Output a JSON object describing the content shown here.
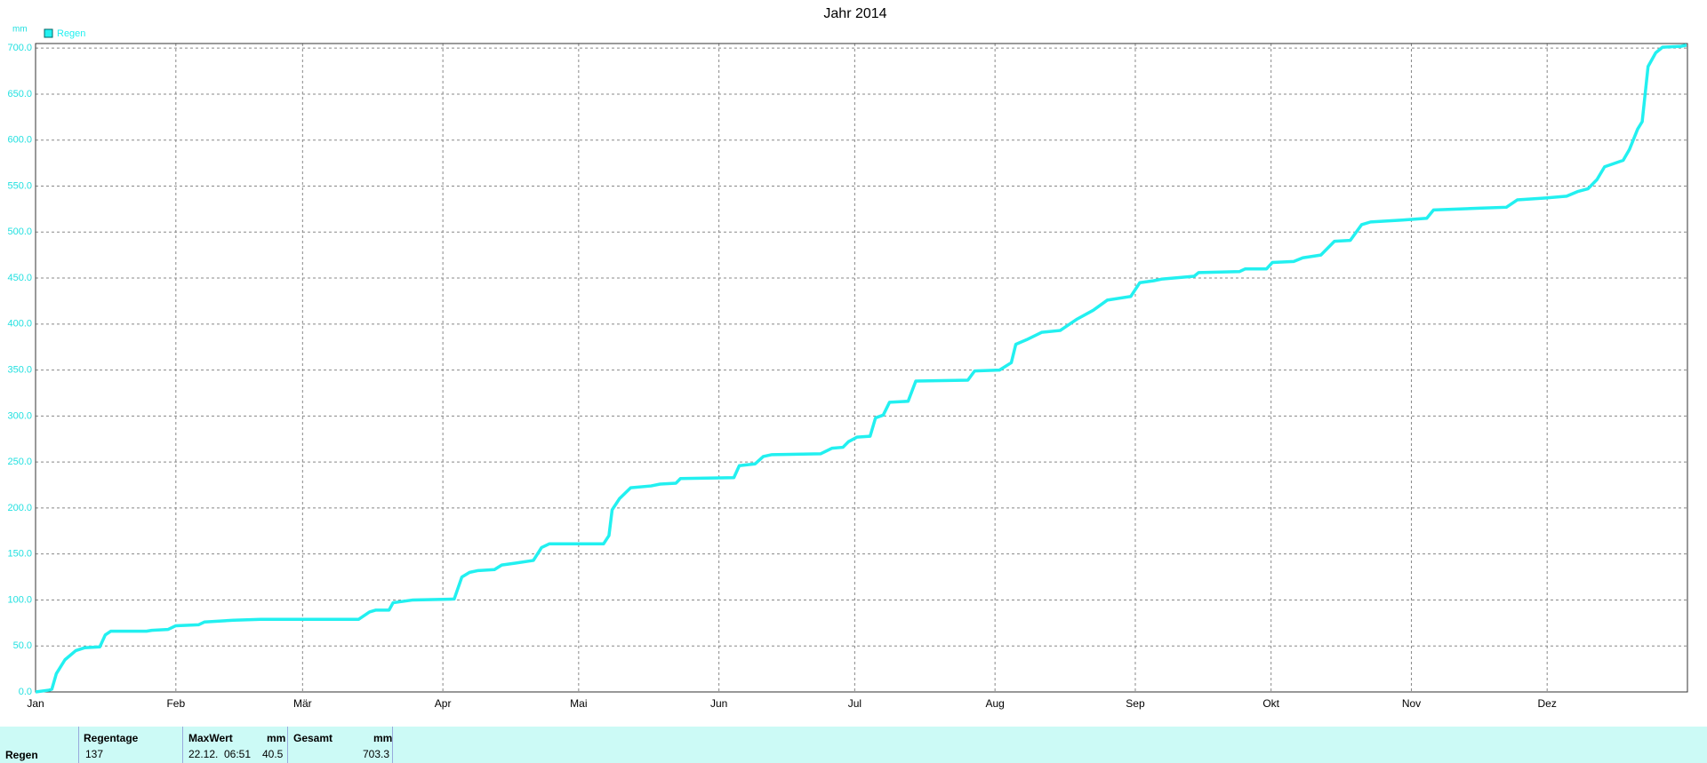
{
  "chart_data": {
    "type": "line",
    "title": "Jahr 2014",
    "y_unit": "mm",
    "x": [
      0,
      3,
      3.6,
      4.6,
      6.5,
      8.9,
      10.8,
      14.2,
      15.4,
      16.6,
      24.5,
      25.7,
      29.3,
      31,
      36,
      37.3,
      43.8,
      49.8,
      71.4,
      73.8,
      75.2,
      78.1,
      79,
      83.4,
      92.5,
      94.2,
      95.9,
      97.8,
      101.4,
      103,
      106,
      110,
      111.8,
      113.5,
      125.5,
      126.7,
      127.4,
      129,
      131.5,
      136,
      138,
      141.5,
      142.5,
      154.3,
      155.5,
      159,
      160.8,
      162.7,
      173.5,
      176,
      178.4,
      179.6,
      181.5,
      184.4,
      185.6,
      187.3,
      188.7,
      192.8,
      194.5,
      206,
      207.5,
      213,
      215.6,
      216.6,
      219,
      222.3,
      226.4,
      230,
      233.7,
      236.8,
      242,
      244,
      247,
      249,
      256,
      257,
      266,
      267.3,
      272,
      273.3,
      278,
      280,
      284,
      287,
      290.5,
      293,
      295,
      302,
      307.4,
      308.9,
      319,
      325,
      327.4,
      333.4,
      338.3,
      340.7,
      343,
      345,
      346.7,
      350.8,
      352.2,
      354,
      355,
      356.3,
      358,
      359.5,
      363.6,
      364.8
    ],
    "series": [
      {
        "name": "Regen",
        "color": "#22f0f0",
        "values": [
          0,
          2,
          3,
          20,
          35,
          45,
          48,
          49,
          62,
          66,
          66,
          67,
          68,
          72,
          73,
          76,
          78,
          79,
          79,
          87,
          89,
          89,
          97,
          100,
          101,
          125,
          130,
          132,
          133,
          138,
          140,
          143,
          157,
          161,
          161,
          170,
          198,
          210,
          222,
          224,
          226,
          227,
          232,
          233,
          246,
          248,
          256,
          258,
          259,
          265,
          266,
          272,
          277,
          278,
          298,
          301,
          315,
          316,
          338,
          339,
          349,
          350,
          358,
          378,
          383,
          391,
          393,
          405,
          415,
          426,
          430,
          445,
          447,
          449,
          452,
          456,
          457,
          460,
          460,
          467,
          468,
          472,
          475,
          490,
          491,
          508,
          511,
          513,
          515,
          524,
          526,
          527,
          535,
          537,
          539,
          544,
          547,
          557,
          571,
          578,
          590,
          612,
          620,
          680,
          695,
          701,
          702,
          703.3
        ]
      }
    ],
    "xlim": [
      0,
      365
    ],
    "xticks": [
      {
        "value": 0,
        "label": "Jan"
      },
      {
        "value": 31,
        "label": "Feb"
      },
      {
        "value": 59,
        "label": "Mär"
      },
      {
        "value": 90,
        "label": "Apr"
      },
      {
        "value": 120,
        "label": "Mai"
      },
      {
        "value": 151,
        "label": "Jun"
      },
      {
        "value": 181,
        "label": "Jul"
      },
      {
        "value": 212,
        "label": "Aug"
      },
      {
        "value": 243,
        "label": "Sep"
      },
      {
        "value": 273,
        "label": "Okt"
      },
      {
        "value": 304,
        "label": "Nov"
      },
      {
        "value": 334,
        "label": "Dez"
      }
    ],
    "ylim": [
      0,
      705
    ],
    "yticks": [
      {
        "value": 0,
        "label": "0.0"
      },
      {
        "value": 50,
        "label": "50.0"
      },
      {
        "value": 100,
        "label": "100.0"
      },
      {
        "value": 150,
        "label": "150.0"
      },
      {
        "value": 200,
        "label": "200.0"
      },
      {
        "value": 250,
        "label": "250.0"
      },
      {
        "value": 300,
        "label": "300.0"
      },
      {
        "value": 350,
        "label": "350.0"
      },
      {
        "value": 400,
        "label": "400.0"
      },
      {
        "value": 450,
        "label": "450.0"
      },
      {
        "value": 500,
        "label": "500.0"
      },
      {
        "value": 550,
        "label": "550.0"
      },
      {
        "value": 600,
        "label": "600.0"
      },
      {
        "value": 650,
        "label": "650.0"
      },
      {
        "value": 700,
        "label": "700.0"
      }
    ],
    "grid": true,
    "legend": "top-left"
  },
  "footer": {
    "row_label": "Regen",
    "regentage": {
      "header": "Regentage",
      "value": "137"
    },
    "maxwert": {
      "header": "MaxWert",
      "unit": "mm",
      "date": "22.12.",
      "time": "06:51",
      "value": "40.5"
    },
    "gesamt": {
      "header": "Gesamt",
      "unit": "mm",
      "value": "703.3"
    }
  }
}
